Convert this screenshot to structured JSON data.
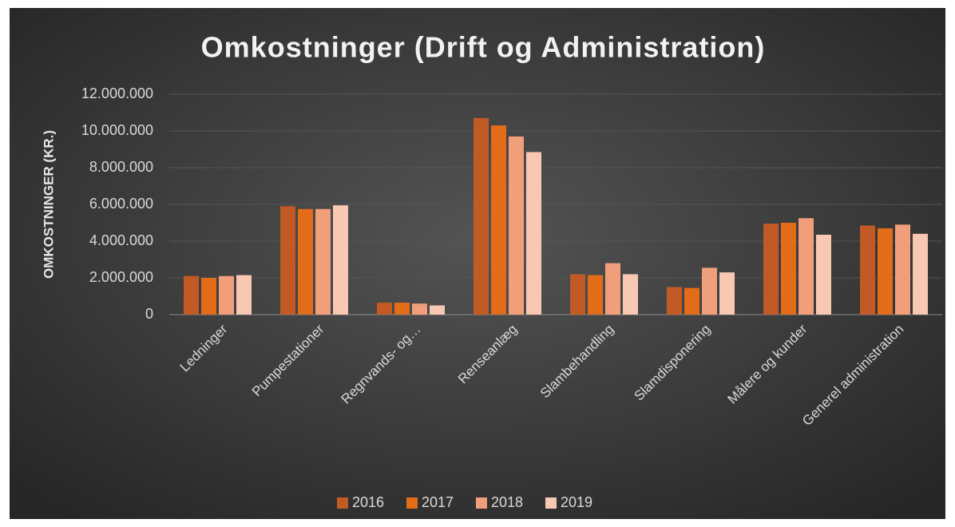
{
  "chart_data": {
    "type": "bar",
    "title": "Omkostninger (Drift og Administration)",
    "y_label": "OMKOSTNINGER (KR.)",
    "categories": [
      "Ledninger",
      "Pumpestationer",
      "Regnvands- og…",
      "Renseanlæg",
      "Slambehandling",
      "Slamdisponering",
      "Målere og kunder",
      "Generel administration"
    ],
    "series": [
      {
        "name": "2016",
        "color": "#c25a26",
        "values": [
          2100000,
          5900000,
          650000,
          10700000,
          2200000,
          1500000,
          4950000,
          4850000
        ]
      },
      {
        "name": "2017",
        "color": "#e36c19",
        "values": [
          2000000,
          5750000,
          650000,
          10300000,
          2150000,
          1450000,
          5000000,
          4700000
        ]
      },
      {
        "name": "2018",
        "color": "#f19f7a",
        "values": [
          2100000,
          5750000,
          600000,
          9700000,
          2800000,
          2550000,
          5250000,
          4900000
        ]
      },
      {
        "name": "2019",
        "color": "#f8c8b3",
        "values": [
          2150000,
          5950000,
          500000,
          8850000,
          2200000,
          2300000,
          4350000,
          4400000
        ]
      }
    ],
    "ylim": [
      0,
      12000000
    ],
    "yticks": [
      0,
      {
        "value": 2000000,
        "label": "2.000.000"
      },
      {
        "value": 4000000,
        "label": "4.000.000"
      },
      {
        "value": 6000000,
        "label": "6.000.000"
      },
      {
        "value": 8000000,
        "label": "8.000.000"
      },
      {
        "value": 10000000,
        "label": "10.000.000"
      },
      {
        "value": 12000000,
        "label": "12.000.000"
      }
    ],
    "grid": true,
    "legend": "bottom"
  }
}
